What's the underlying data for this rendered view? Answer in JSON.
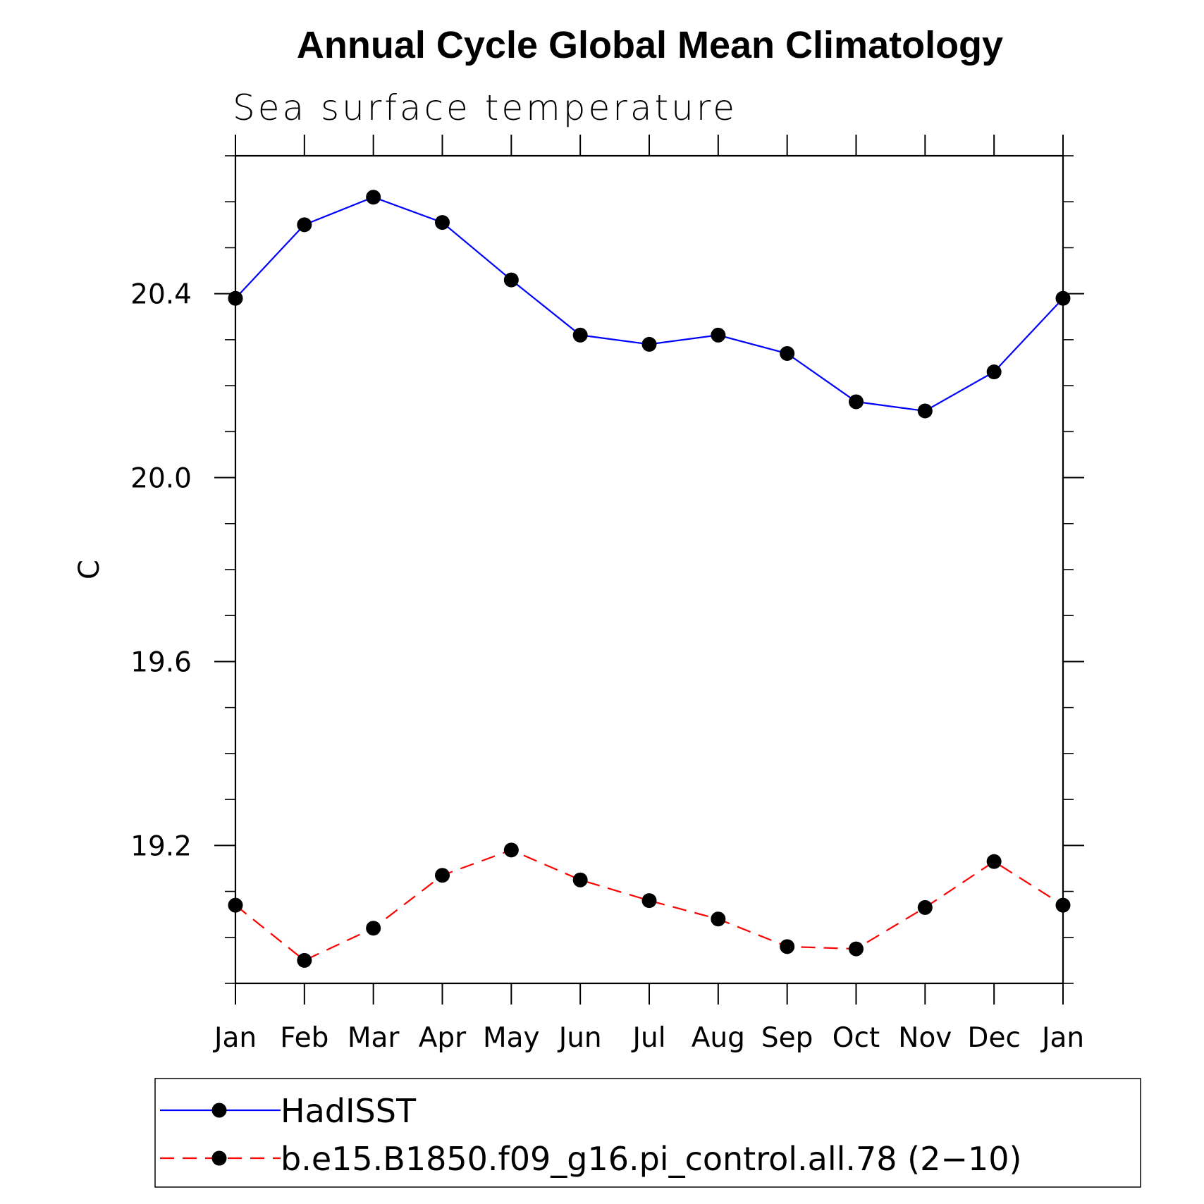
{
  "chart_data": {
    "type": "line",
    "title": "Annual Cycle Global Mean Climatology",
    "subtitle": "Sea surface temperature",
    "xlabel": "",
    "ylabel": "C",
    "categories": [
      "Jan",
      "Feb",
      "Mar",
      "Apr",
      "May",
      "Jun",
      "Jul",
      "Aug",
      "Sep",
      "Oct",
      "Nov",
      "Dec",
      "Jan"
    ],
    "ylim": [
      18.9,
      20.7
    ],
    "yticks": [
      "20.4",
      "20.0",
      "19.6",
      "19.2"
    ],
    "grid": false,
    "legend_position": "bottom",
    "series": [
      {
        "name": "HadISST",
        "color": "#0000ff",
        "line_style": "solid",
        "marker": "filled-circle",
        "values": [
          20.39,
          20.55,
          20.61,
          20.555,
          20.43,
          20.31,
          20.29,
          20.31,
          20.27,
          20.165,
          20.145,
          20.23,
          20.39
        ]
      },
      {
        "name": "b.e15.B1850.f09_g16.pi_control.all.78 (2−10)",
        "color": "#ff0000",
        "line_style": "dashed",
        "marker": "filled-circle",
        "values": [
          19.07,
          18.95,
          19.02,
          19.135,
          19.19,
          19.125,
          19.08,
          19.04,
          18.98,
          18.975,
          19.065,
          19.165,
          19.07
        ]
      }
    ]
  }
}
